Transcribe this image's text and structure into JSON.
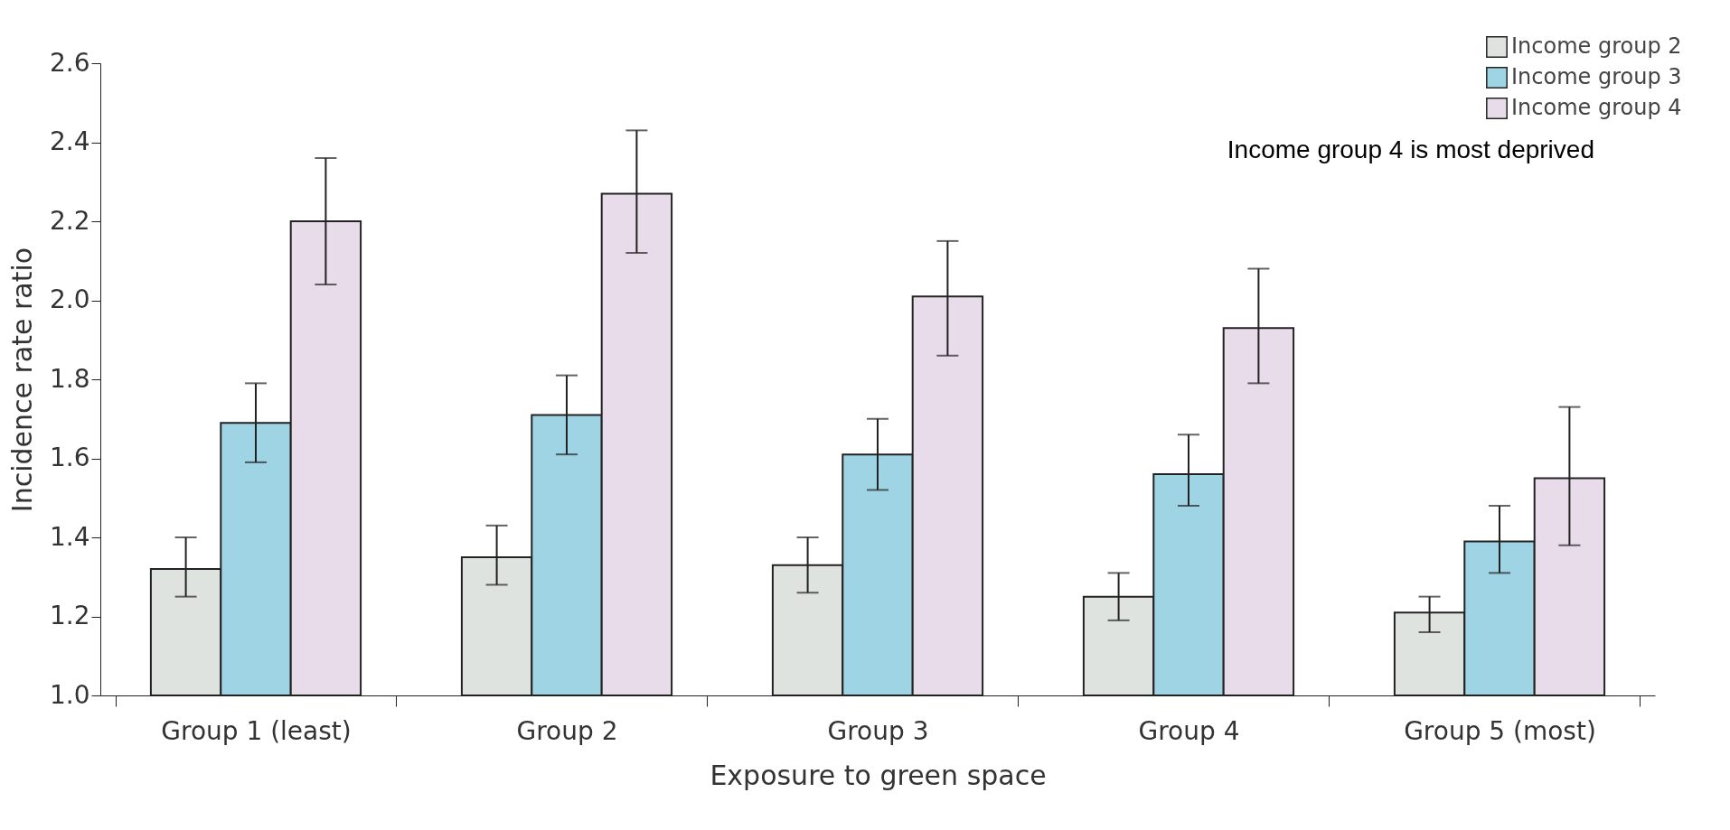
{
  "chart_data": {
    "type": "bar",
    "xlabel": "Exposure to green space",
    "ylabel": "Incidence rate ratio",
    "categories": [
      "Group 1 (least)",
      "Group 2",
      "Group 3",
      "Group 4",
      "Group 5 (most)"
    ],
    "series": [
      {
        "name": "Income group 2",
        "color": "#dfe3df",
        "values": [
          1.32,
          1.35,
          1.33,
          1.25,
          1.21
        ],
        "errors": [
          [
            1.25,
            1.4
          ],
          [
            1.28,
            1.43
          ],
          [
            1.26,
            1.4
          ],
          [
            1.19,
            1.31
          ],
          [
            1.16,
            1.25
          ]
        ]
      },
      {
        "name": "Income group 3",
        "color": "#9ed4e3",
        "values": [
          1.69,
          1.71,
          1.61,
          1.56,
          1.39
        ],
        "errors": [
          [
            1.59,
            1.79
          ],
          [
            1.61,
            1.81
          ],
          [
            1.52,
            1.7
          ],
          [
            1.48,
            1.66
          ],
          [
            1.31,
            1.48
          ]
        ]
      },
      {
        "name": "Income group 4",
        "color": "#e8dcea",
        "values": [
          2.2,
          2.27,
          2.01,
          1.93,
          1.55
        ],
        "errors": [
          [
            2.04,
            2.36
          ],
          [
            2.12,
            2.43
          ],
          [
            1.86,
            2.15
          ],
          [
            1.79,
            2.08
          ],
          [
            1.38,
            1.73
          ]
        ]
      }
    ],
    "ylim": [
      1.0,
      2.6
    ],
    "yticks": [
      {
        "value": 1.0,
        "label": "1.0"
      },
      1.2,
      1.4,
      1.6,
      1.8,
      {
        "value": 2.0,
        "label": "2.0"
      },
      2.2,
      2.4,
      2.6
    ],
    "legend": "top right",
    "grid": false,
    "annotations": [
      "Income group 4 is most deprived"
    ]
  }
}
